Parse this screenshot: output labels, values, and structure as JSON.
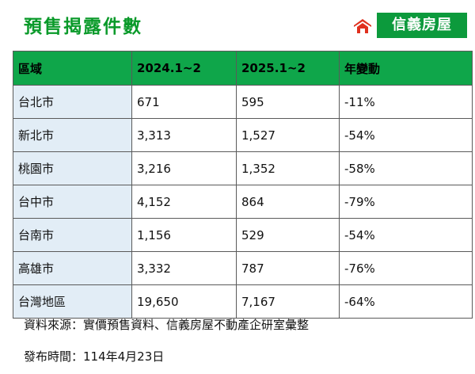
{
  "header": {
    "title": "預售揭露件數",
    "brand_name": "信義房屋",
    "brand_color": "#0c9a3c",
    "logo_icon": "sinyi-logo-icon"
  },
  "table": {
    "header_color": "#0fa64a",
    "region_cell_color": "#e2edf6",
    "columns": [
      "區域",
      "2024.1~2",
      "2025.1~2",
      "年變動"
    ],
    "rows": [
      {
        "region": "台北市",
        "y2024": "671",
        "y2025": "595",
        "change": "-11%"
      },
      {
        "region": "新北市",
        "y2024": "3,313",
        "y2025": "1,527",
        "change": "-54%"
      },
      {
        "region": "桃園市",
        "y2024": "3,216",
        "y2025": "1,352",
        "change": "-58%"
      },
      {
        "region": "台中市",
        "y2024": "4,152",
        "y2025": "864",
        "change": "-79%"
      },
      {
        "region": "台南市",
        "y2024": "1,156",
        "y2025": "529",
        "change": "-54%"
      },
      {
        "region": "高雄市",
        "y2024": "3,332",
        "y2025": "787",
        "change": "-76%"
      },
      {
        "region": "台灣地區",
        "y2024": "19,650",
        "y2025": "7,167",
        "change": "-64%"
      }
    ]
  },
  "footer": {
    "source": "資料來源：實價預售資料、信義房屋不動產企研室彙整",
    "published": "發布時間：114年4月23日"
  }
}
